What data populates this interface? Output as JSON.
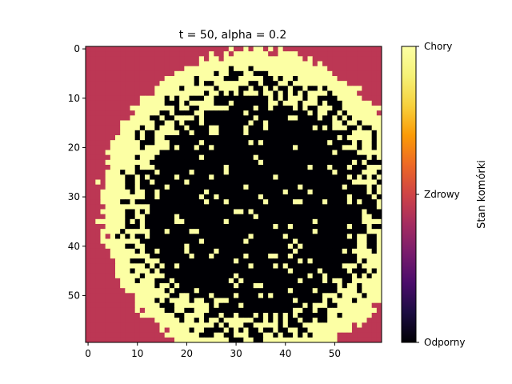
{
  "chart_data": {
    "type": "heatmap",
    "title": "t = 50, alpha = 0.2",
    "xlabel": "",
    "ylabel": "",
    "grid_size": [
      60,
      60
    ],
    "x_ticks": [
      0,
      10,
      20,
      30,
      40,
      50
    ],
    "y_ticks": [
      0,
      10,
      20,
      30,
      40,
      50
    ],
    "x_range": [
      -0.5,
      59.5
    ],
    "y_range": [
      -0.5,
      59.5
    ],
    "y_inverted": true,
    "grid": false,
    "colormap": "inferno",
    "states": [
      {
        "label": "Odporny",
        "value": 0,
        "color": "#000004"
      },
      {
        "label": "Zdrowy",
        "value": 0.5,
        "color": "#bc3754"
      },
      {
        "label": "Chory",
        "value": 1,
        "color": "#fcffa4"
      }
    ],
    "colorbar": {
      "label": "Stan komórki",
      "ticks": [
        "Odporny",
        "Zdrowy",
        "Chory"
      ],
      "placement": "right"
    },
    "pattern": {
      "center": [
        34,
        32
      ],
      "healthy_outside_radius": 31.5,
      "mixed_ring_inner_radius": 22,
      "description_values": "center mostly Odporny with scattered Chory cells; ring of mixed Chory/Odporny; outer corners Zdrowy"
    }
  }
}
